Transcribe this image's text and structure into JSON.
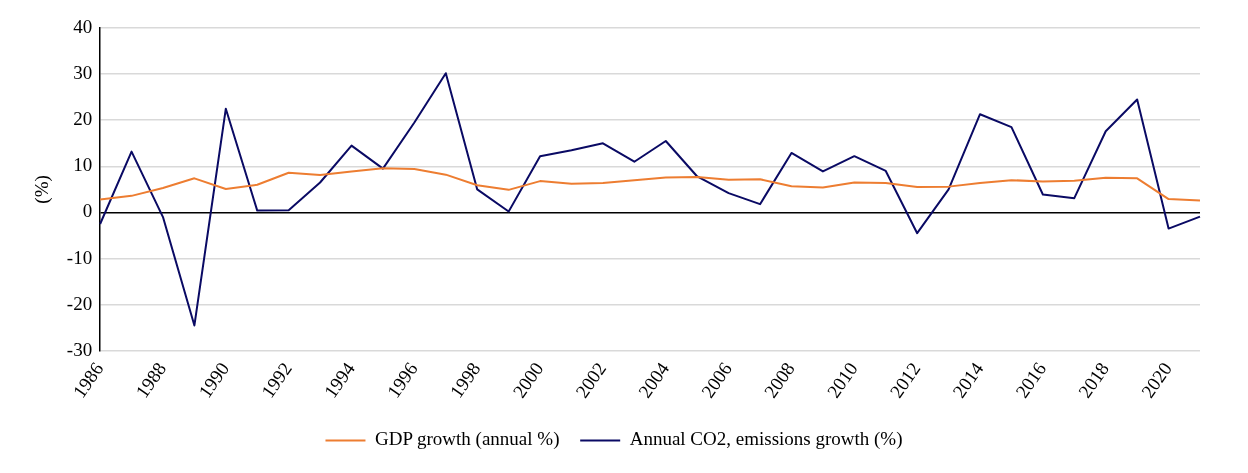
{
  "chart_data": {
    "type": "line",
    "ylabel": "(%)",
    "categories": [
      "1986",
      null,
      "1988",
      null,
      "1990",
      null,
      "1992",
      null,
      "1994",
      null,
      "1996",
      null,
      "1998",
      null,
      "2000",
      null,
      "2002",
      null,
      "2004",
      null,
      "2006",
      null,
      "2008",
      null,
      "2010",
      null,
      "2012",
      null,
      "2014",
      null,
      "2016",
      null,
      "2018",
      null,
      "2020",
      null
    ],
    "series": [
      {
        "name": "GDP growth (annual %)",
        "color": "#ed7d31",
        "values": [
          2.8,
          3.6,
          5.3,
          7.4,
          5.1,
          6,
          8.6,
          8.1,
          8.9,
          9.6,
          9.4,
          8.2,
          5.9,
          4.9,
          6.8,
          6.2,
          6.4,
          7,
          7.6,
          7.7,
          7.1,
          7.2,
          5.7,
          5.4,
          6.5,
          6.4,
          5.5,
          5.6,
          6.4,
          7,
          6.7,
          6.9,
          7.5,
          7.4,
          2.9,
          2.6
        ]
      },
      {
        "name": "Annual CO2, emissions growth (%)",
        "color": "#0a0a64",
        "values": [
          -2.5,
          13.2,
          -1,
          -24.5,
          22.5,
          0.4,
          0.5,
          6.5,
          14.5,
          9.5,
          19.5,
          30.2,
          5,
          0.2,
          12.2,
          13.5,
          15,
          11,
          15.5,
          7.8,
          4.2,
          1.8,
          12.9,
          8.9,
          12.2,
          9,
          -4.5,
          5,
          21.3,
          18.5,
          3.9,
          3.1,
          17.6,
          24.5,
          -3.5,
          -0.9
        ]
      }
    ],
    "ylim": [
      -30,
      40
    ],
    "yticks": [
      -30,
      -20,
      -10,
      0,
      10,
      20,
      30,
      40
    ],
    "grid": "y",
    "legend": "bottom",
    "marker": "none",
    "line_style": "solid"
  }
}
